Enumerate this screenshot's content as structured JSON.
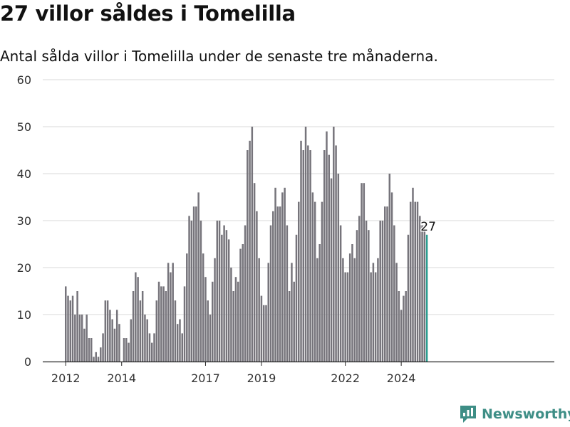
{
  "title": "27 villor såldes i Tomelilla",
  "subtitle": "Antal sålda villor i Tomelilla under de senaste tre månaderna.",
  "brand": {
    "name": "Newsworthy",
    "icon": "newsworthy-logo-icon"
  },
  "colors": {
    "bar": "#76747b",
    "highlight": "#2a9d8f",
    "grid": "#d9d9d9",
    "axis": "#222222",
    "brand": "#3e8e86"
  },
  "chart_data": {
    "type": "bar",
    "title": "",
    "xlabel": "",
    "ylabel": "",
    "ylim": [
      0,
      60
    ],
    "yticks": [
      0,
      10,
      20,
      30,
      40,
      50,
      60
    ],
    "xticks": [
      "2012",
      "2014",
      "2017",
      "2019",
      "2022",
      "2024"
    ],
    "grid": true,
    "highlight_label": "27",
    "series": [
      {
        "values": [
          16,
          14,
          13,
          14,
          10,
          15,
          10,
          10,
          7,
          10,
          5,
          5,
          1,
          2,
          1,
          3,
          6,
          13,
          13,
          11,
          9,
          7,
          11,
          8,
          0,
          5,
          5,
          4,
          9,
          15,
          19,
          18,
          13,
          15,
          10,
          9,
          6,
          4,
          6,
          13,
          17,
          16,
          16,
          15,
          21,
          19,
          21,
          13,
          8,
          9,
          6,
          16,
          23,
          31,
          30,
          33,
          33,
          36,
          30,
          23,
          18,
          13,
          10,
          17,
          22,
          30,
          30,
          27,
          29,
          28,
          26,
          20,
          15,
          18,
          17,
          24,
          25,
          29,
          45,
          47,
          50,
          38,
          32,
          22,
          14,
          12,
          12,
          21,
          29,
          32,
          37,
          33,
          33,
          36,
          37,
          29,
          15,
          21,
          17,
          27,
          34,
          47,
          45,
          50,
          46,
          45,
          36,
          34,
          22,
          25,
          34,
          45,
          49,
          44,
          39,
          50,
          46,
          40,
          29,
          22,
          19,
          19,
          23,
          25,
          22,
          28,
          31,
          38,
          38,
          30,
          28,
          19,
          21,
          19,
          22,
          30,
          30,
          33,
          33,
          40,
          36,
          29,
          21,
          15,
          11,
          14,
          15,
          27,
          34,
          37,
          34,
          34,
          31,
          29,
          29,
          27
        ]
      }
    ]
  }
}
